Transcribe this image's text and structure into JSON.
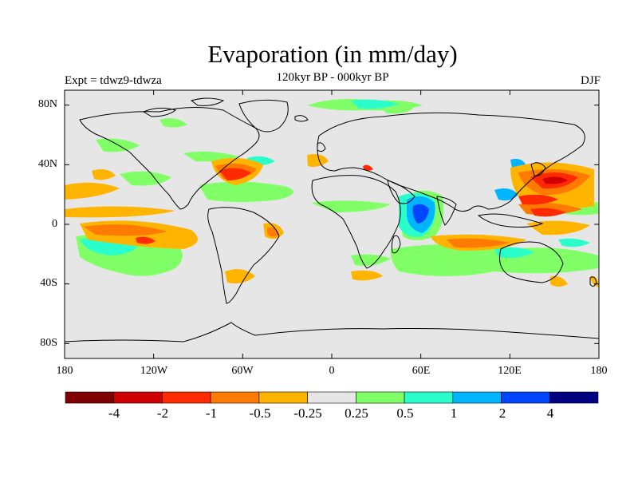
{
  "title": "Evaporation (in mm/day)",
  "subtitle": "120kyr BP - 000kyr BP",
  "experiment_label": "Expt = tdwz9-tdwza",
  "season_label": "DJF",
  "y_axis": {
    "ticks": [
      "80N",
      "40N",
      "0",
      "40S",
      "80S"
    ],
    "values": [
      80,
      40,
      0,
      -40,
      -80
    ]
  },
  "x_axis": {
    "ticks": [
      "180",
      "120W",
      "60W",
      "0",
      "60E",
      "120E",
      "180"
    ],
    "values": [
      -180,
      -120,
      -60,
      0,
      60,
      120,
      180
    ]
  },
  "colorbar": {
    "colors": [
      "#800000",
      "#d00000",
      "#ff2a00",
      "#ff7a00",
      "#ffb400",
      "#e6e6e6",
      "#80ff66",
      "#2affcc",
      "#00b4ff",
      "#0046ff",
      "#000080"
    ],
    "labels": [
      "-4",
      "-2",
      "-1",
      "-0.5",
      "-0.25",
      "0.25",
      "0.5",
      "1",
      "2",
      "4"
    ]
  },
  "colors": {
    "land_background": "#e6e6e6",
    "coastline": "#000000"
  }
}
